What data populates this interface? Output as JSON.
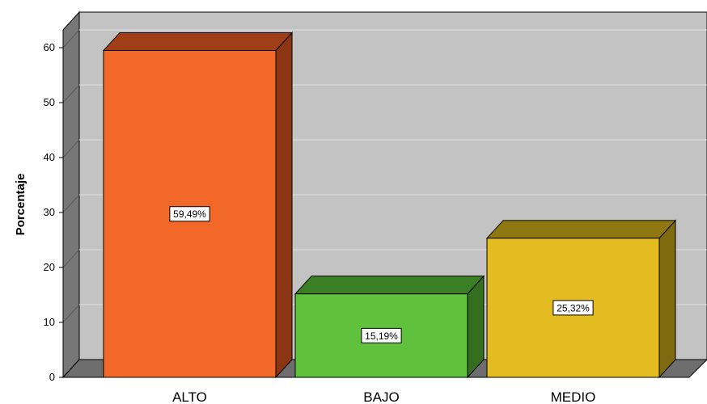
{
  "chart_data": {
    "type": "bar",
    "categories": [
      "ALTO",
      "BAJO",
      "MEDIO"
    ],
    "values": [
      59.49,
      15.19,
      25.32
    ],
    "data_labels": [
      "59,49%",
      "15,19%",
      "25,32%"
    ],
    "ylabel": "Porcentaje",
    "ylim": [
      0,
      60
    ],
    "y_ticks": [
      "0",
      "10",
      "20",
      "30",
      "40",
      "50",
      "60"
    ],
    "grid": true,
    "three_d": true,
    "colors": {
      "bars": [
        "#f26829",
        "#60c13d",
        "#e2bc20"
      ],
      "bar_tops": [
        "#a03e18",
        "#3b7f24",
        "#8f7812"
      ],
      "bar_sides": [
        "#8c3513",
        "#346f1f",
        "#7f6a10"
      ],
      "plot_background": "#c3c3c3",
      "wall_side": "#777777",
      "floor": "#6e6e6e",
      "gridline": "#e2e2e2"
    }
  }
}
